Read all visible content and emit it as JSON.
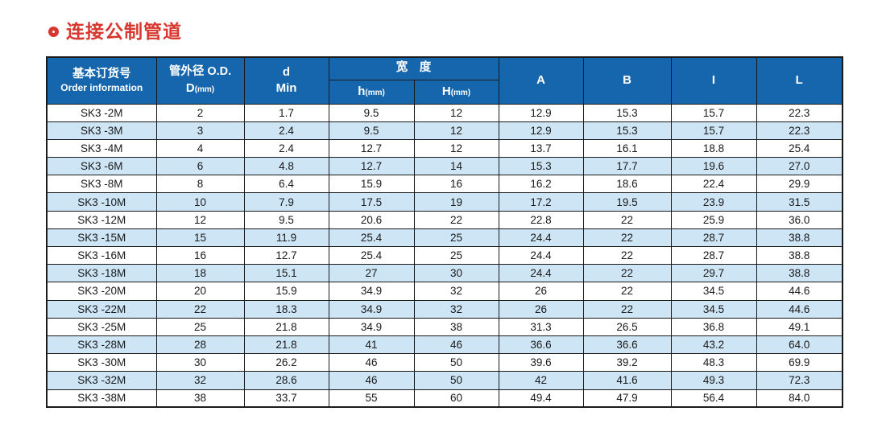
{
  "title": {
    "text": "连接公制管道"
  },
  "colors": {
    "header_bg": "#1566ac",
    "alt_row_bg": "#cee5f6",
    "title_red": "#d7372f",
    "border": "#1a1a1a"
  },
  "table": {
    "header": {
      "order_zh": "基本订货号",
      "order_en": "Order information",
      "od_zh": "管外径 O.D.",
      "od_main": "D",
      "od_unit": "(mm)",
      "d_main": "d",
      "d_sub": "Min",
      "width_group": "宽　度",
      "h_main": "h",
      "h_unit": "(mm)",
      "H_main": "H",
      "H_unit": "(mm)",
      "col_a": "A",
      "col_b": "B",
      "col_i": "I",
      "col_l": "L"
    },
    "columns": [
      "Order information",
      "D(mm)",
      "d Min",
      "h(mm)",
      "H(mm)",
      "A",
      "B",
      "I",
      "L"
    ],
    "rows": [
      [
        "SK3 -2M",
        "2",
        "1.7",
        "9.5",
        "12",
        "12.9",
        "15.3",
        "15.7",
        "22.3"
      ],
      [
        "SK3 -3M",
        "3",
        "2.4",
        "9.5",
        "12",
        "12.9",
        "15.3",
        "15.7",
        "22.3"
      ],
      [
        "SK3 -4M",
        "4",
        "2.4",
        "12.7",
        "12",
        "13.7",
        "16.1",
        "18.8",
        "25.4"
      ],
      [
        "SK3 -6M",
        "6",
        "4.8",
        "12.7",
        "14",
        "15.3",
        "17.7",
        "19.6",
        "27.0"
      ],
      [
        "SK3 -8M",
        "8",
        "6.4",
        "15.9",
        "16",
        "16.2",
        "18.6",
        "22.4",
        "29.9"
      ],
      [
        "SK3 -10M",
        "10",
        "7.9",
        "17.5",
        "19",
        "17.2",
        "19.5",
        "23.9",
        "31.5"
      ],
      [
        "SK3 -12M",
        "12",
        "9.5",
        "20.6",
        "22",
        "22.8",
        "22",
        "25.9",
        "36.0"
      ],
      [
        "SK3 -15M",
        "15",
        "11.9",
        "25.4",
        "25",
        "24.4",
        "22",
        "28.7",
        "38.8"
      ],
      [
        "SK3 -16M",
        "16",
        "12.7",
        "25.4",
        "25",
        "24.4",
        "22",
        "28.7",
        "38.8"
      ],
      [
        "SK3 -18M",
        "18",
        "15.1",
        "27",
        "30",
        "24.4",
        "22",
        "29.7",
        "38.8"
      ],
      [
        "SK3 -20M",
        "20",
        "15.9",
        "34.9",
        "32",
        "26",
        "22",
        "34.5",
        "44.6"
      ],
      [
        "SK3 -22M",
        "22",
        "18.3",
        "34.9",
        "32",
        "26",
        "22",
        "34.5",
        "44.6"
      ],
      [
        "SK3 -25M",
        "25",
        "21.8",
        "34.9",
        "38",
        "31.3",
        "26.5",
        "36.8",
        "49.1"
      ],
      [
        "SK3 -28M",
        "28",
        "21.8",
        "41",
        "46",
        "36.6",
        "36.6",
        "43.2",
        "64.0"
      ],
      [
        "SK3 -30M",
        "30",
        "26.2",
        "46",
        "50",
        "39.6",
        "39.2",
        "48.3",
        "69.9"
      ],
      [
        "SK3 -32M",
        "32",
        "28.6",
        "46",
        "50",
        "42",
        "41.6",
        "49.3",
        "72.3"
      ],
      [
        "SK3 -38M",
        "38",
        "33.7",
        "55",
        "60",
        "49.4",
        "47.9",
        "56.4",
        "84.0"
      ]
    ]
  }
}
